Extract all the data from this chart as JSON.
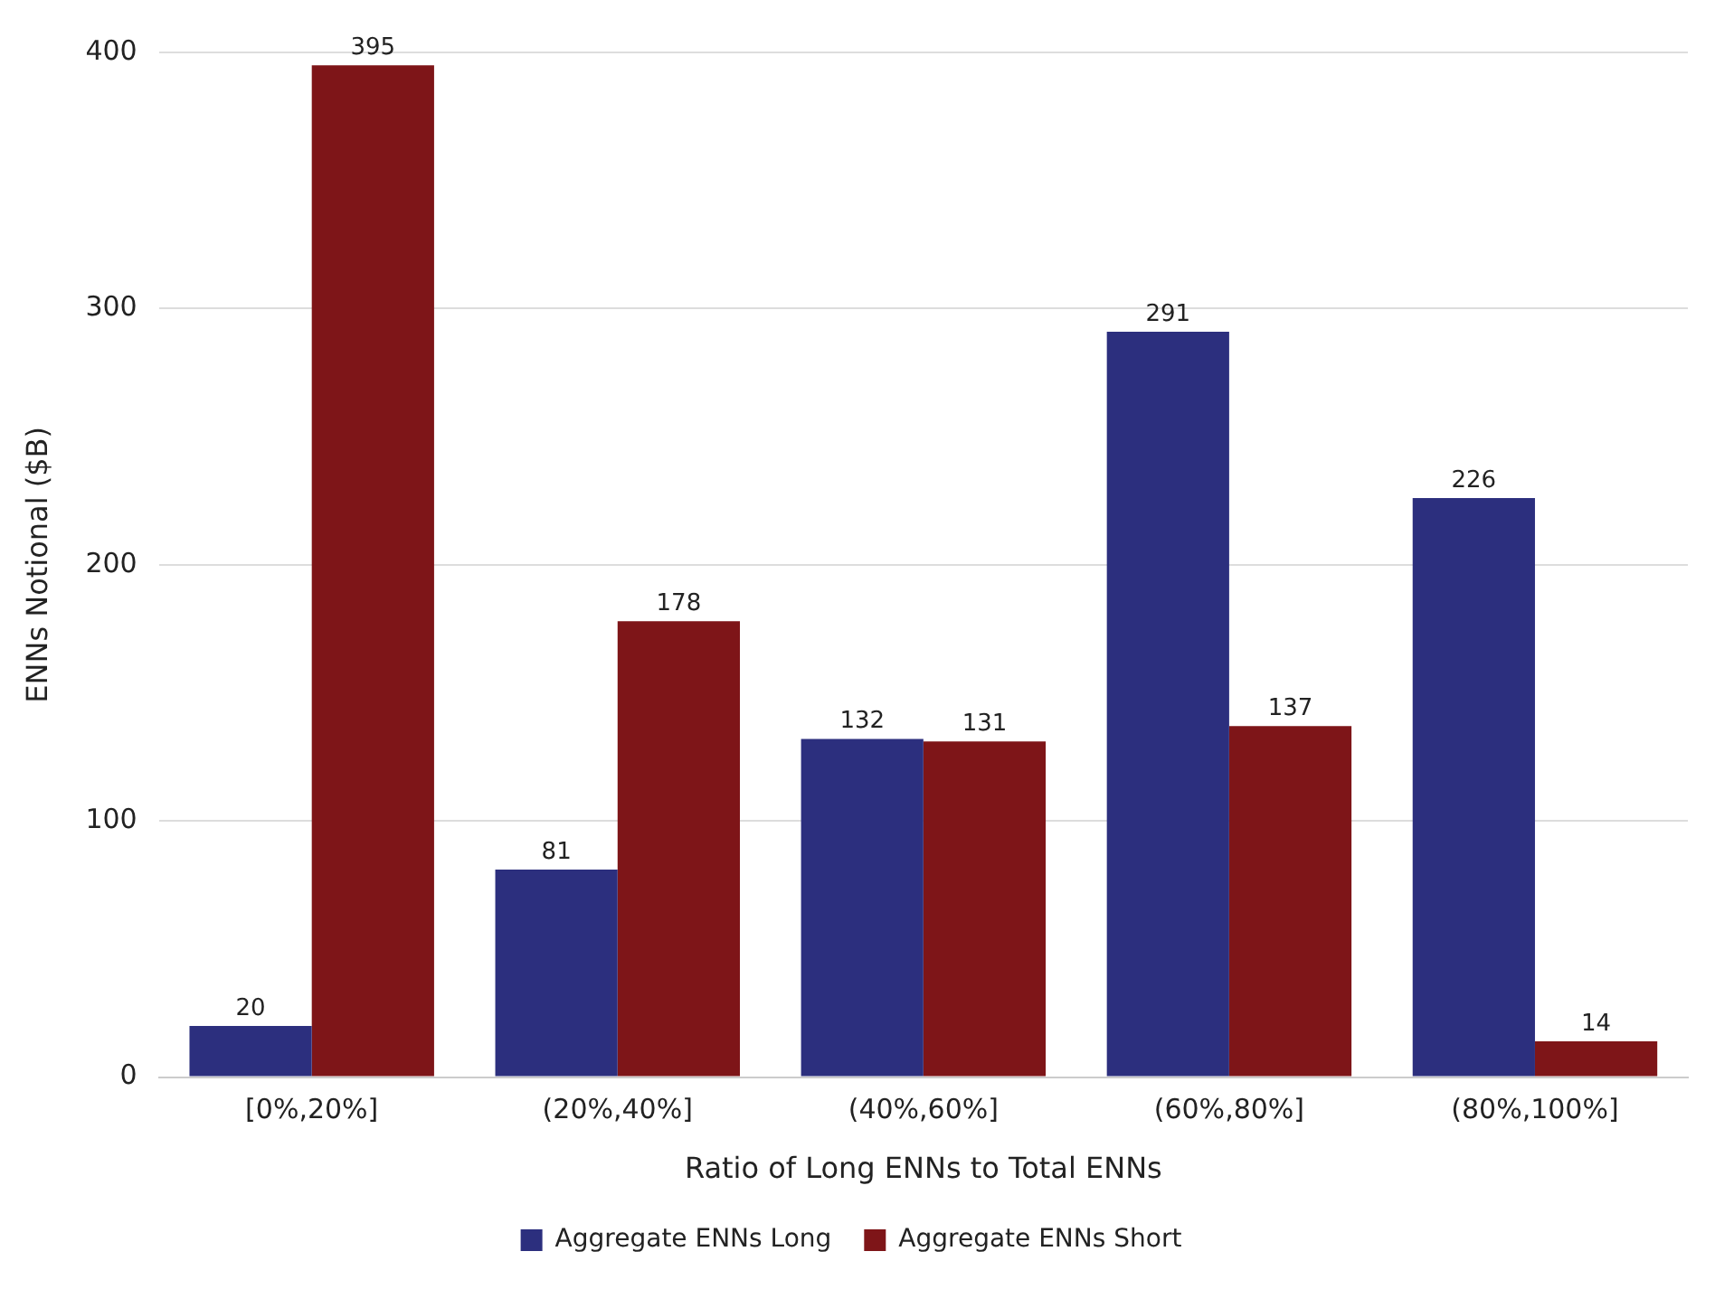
{
  "chart_data": {
    "type": "bar",
    "xlabel": "Ratio of Long ENNs to Total ENNs",
    "ylabel": "ENNs Notional ($B)",
    "categories": [
      "[0%,20%]",
      "(20%,40%]",
      "(40%,60%]",
      "(60%,80%]",
      "(80%,100%]"
    ],
    "series": [
      {
        "name": "Aggregate ENNs Long",
        "color": "#2c2f7e",
        "values": [
          20,
          81,
          132,
          291,
          226
        ]
      },
      {
        "name": "Aggregate ENNs Short",
        "color": "#7e1518",
        "values": [
          395,
          178,
          131,
          137,
          14
        ]
      }
    ],
    "ylim": [
      0,
      400
    ],
    "yticks": [
      0,
      100,
      200,
      300,
      400
    ],
    "grid": "y",
    "legend": "bottom",
    "data_labels": true
  }
}
